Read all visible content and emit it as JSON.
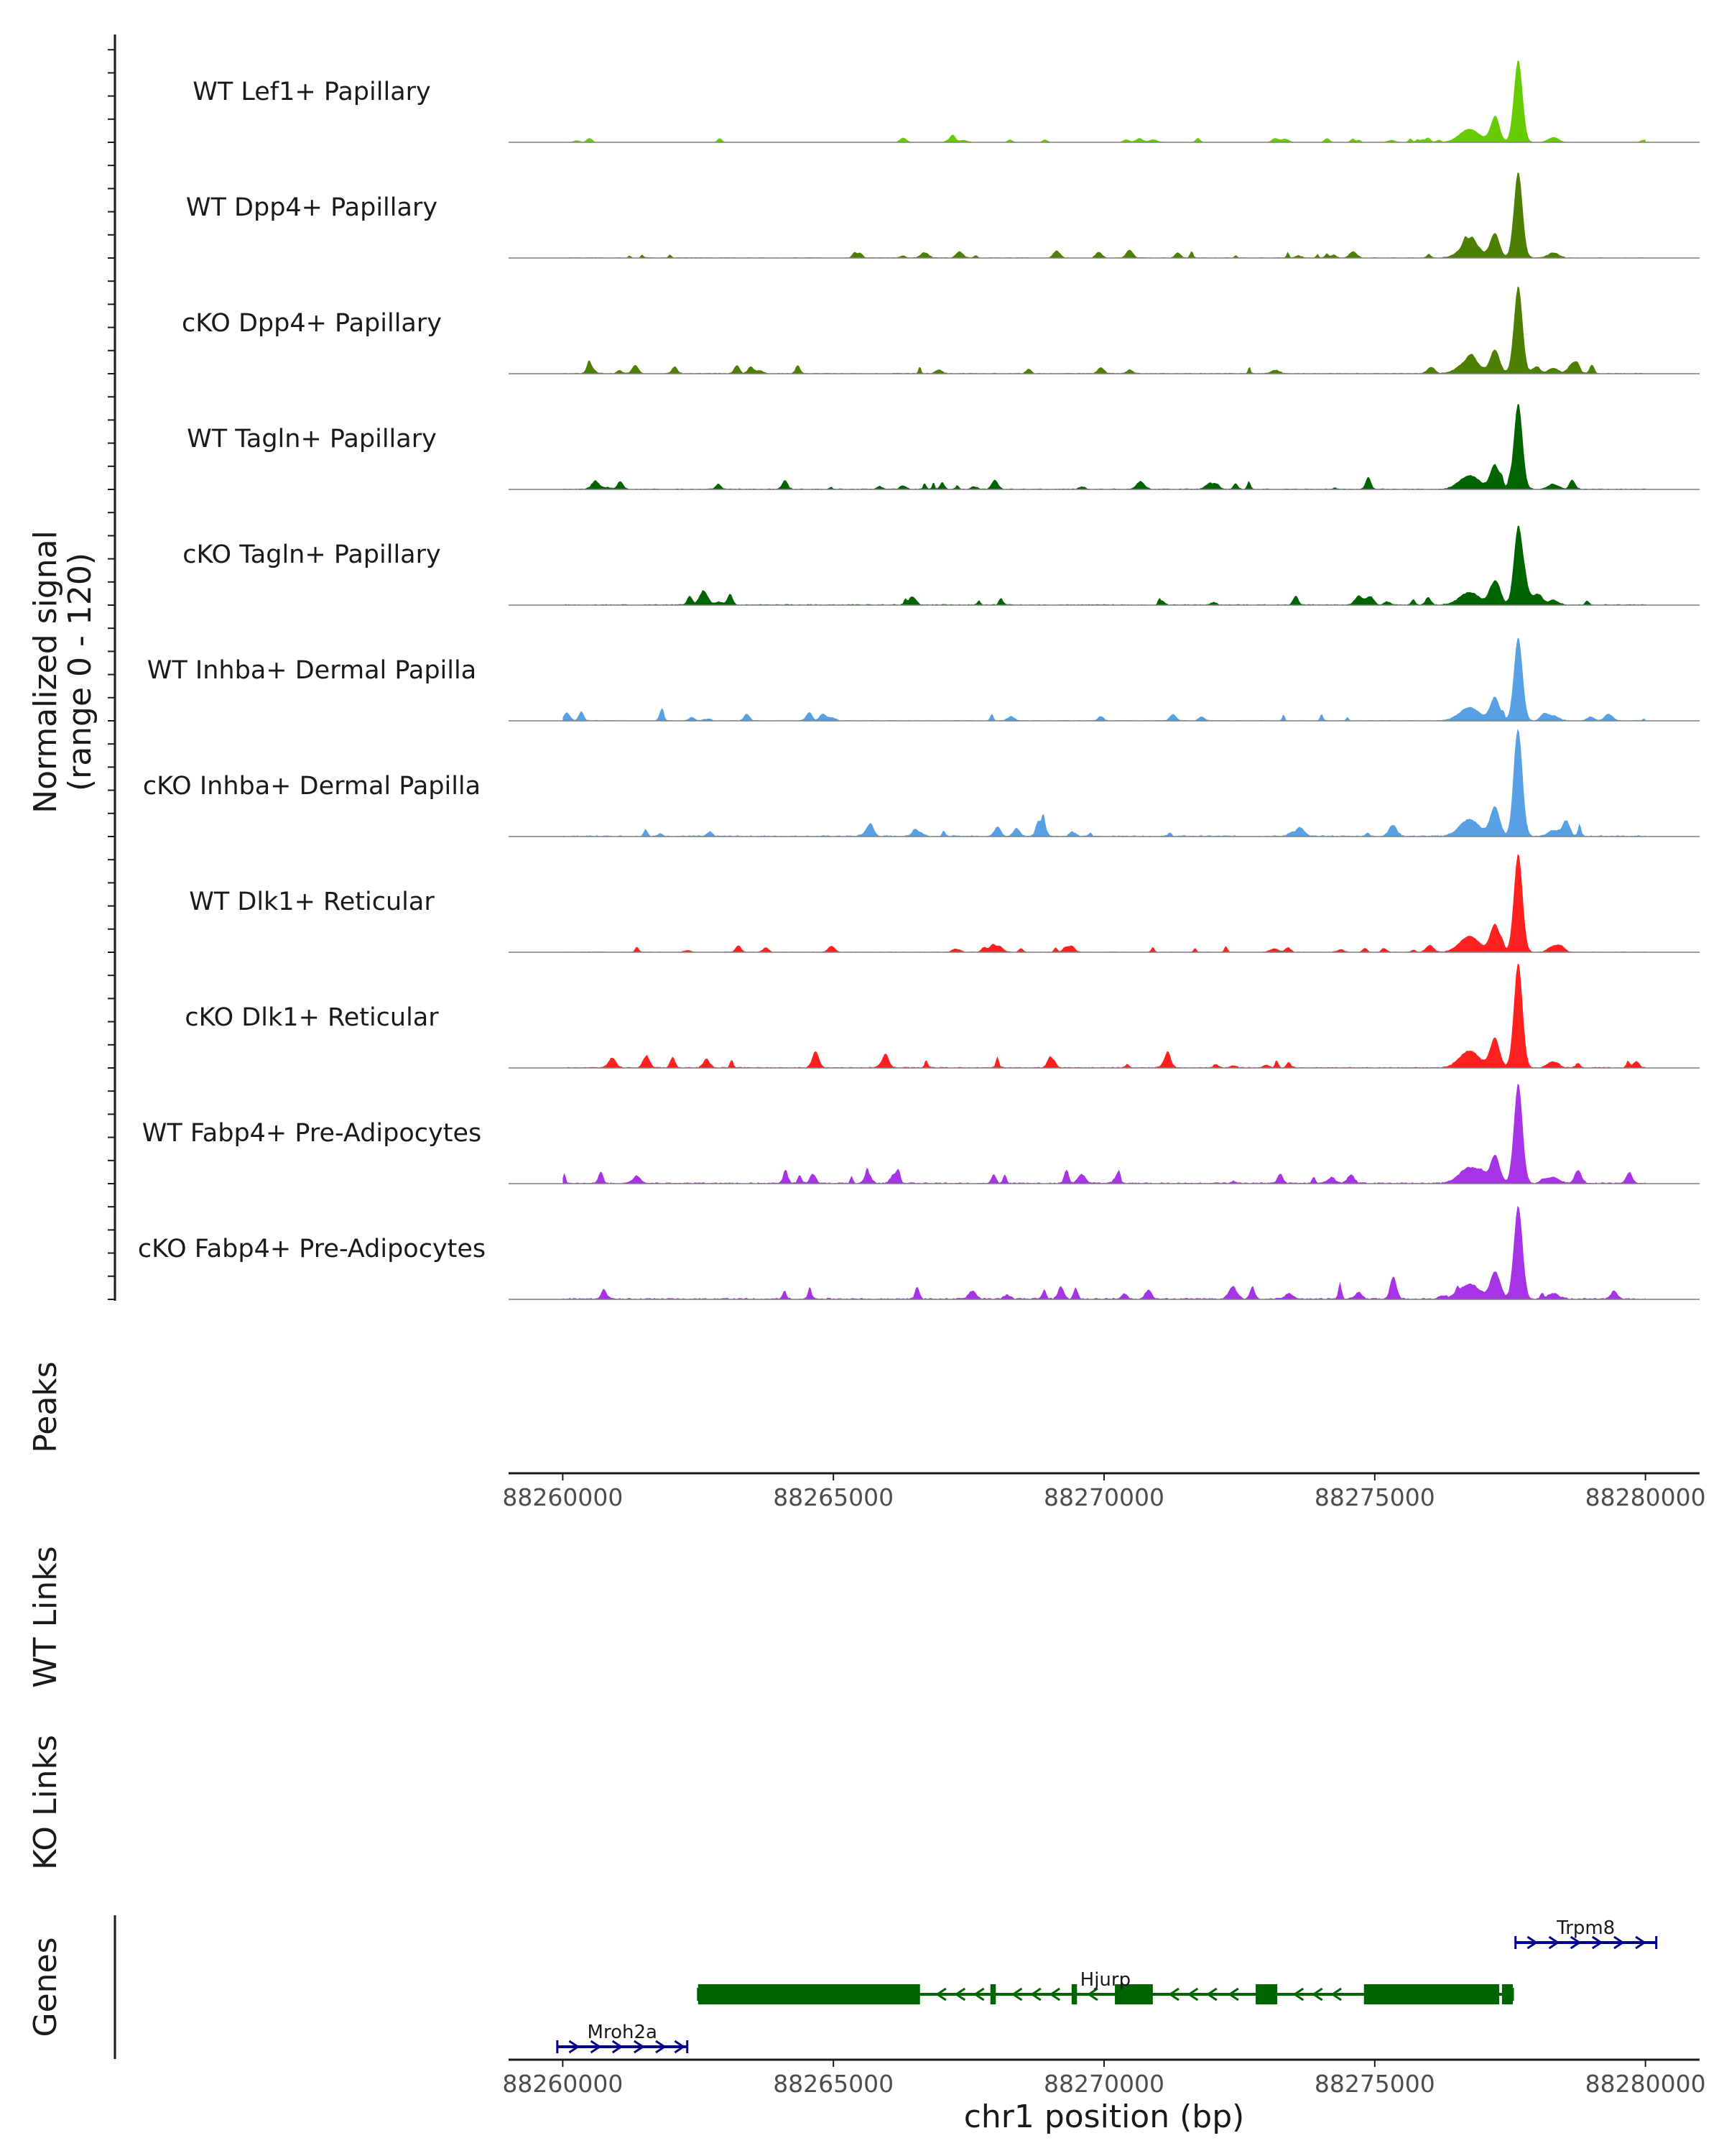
{
  "chart_data": {
    "type": "area",
    "chromosome": "chr1",
    "xlim": [
      88259000,
      88281000
    ],
    "x_ticks": [
      88260000,
      88265000,
      88270000,
      88275000,
      88280000
    ],
    "x_tick_labels": [
      "88260000",
      "88265000",
      "88270000",
      "88275000",
      "88280000"
    ],
    "xlabel": "chr1 position (bp)",
    "y_axis_title_lines": [
      "Normalized signal",
      "(range 0 - 120)"
    ],
    "ylim": [
      0,
      120
    ],
    "main_peak_center": 88277650,
    "tracks": [
      {
        "name": "WT Lef1+ Papillary",
        "color": "#66CC00",
        "peak_height": 92,
        "noise": 0.3,
        "seed": 1
      },
      {
        "name": "WT Dpp4+ Papillary",
        "color": "#4D8000",
        "peak_height": 96,
        "noise": 0.7,
        "seed": 2
      },
      {
        "name": "cKO Dpp4+ Papillary",
        "color": "#4D8000",
        "peak_height": 94,
        "noise": 0.8,
        "seed": 3
      },
      {
        "name": "WT Tagln+ Papillary",
        "color": "#006400",
        "peak_height": 96,
        "noise": 0.9,
        "seed": 4
      },
      {
        "name": "cKO Tagln+ Papillary",
        "color": "#006400",
        "peak_height": 87,
        "noise": 1.0,
        "seed": 5
      },
      {
        "name": "WT Inhba+ Dermal Papilla",
        "color": "#56A0E3",
        "peak_height": 93,
        "noise": 0.7,
        "seed": 6
      },
      {
        "name": "cKO Inhba+ Dermal Papilla",
        "color": "#56A0E3",
        "peak_height": 117,
        "noise": 1.2,
        "seed": 7
      },
      {
        "name": "WT Dlk1+ Reticular",
        "color": "#FF2020",
        "peak_height": 110,
        "noise": 0.6,
        "seed": 8
      },
      {
        "name": "cKO Dlk1+ Reticular",
        "color": "#FF2020",
        "peak_height": 117,
        "noise": 1.0,
        "seed": 9
      },
      {
        "name": "WT Fabp4+ Pre-Adipocytes",
        "color": "#A733E6",
        "peak_height": 111,
        "noise": 1.3,
        "seed": 10
      },
      {
        "name": "cKO Fabp4+ Pre-Adipocytes",
        "color": "#A733E6",
        "peak_height": 104,
        "noise": 1.4,
        "seed": 11
      }
    ],
    "panels": {
      "peaks_title": "Peaks",
      "wt_links_title": "WT Links",
      "ko_links_title": "KO Links",
      "genes_title": "Genes"
    },
    "genes": [
      {
        "name": "Trpm8",
        "strand": "+",
        "color": "#00008B",
        "start": 88277600,
        "end": 88280200,
        "row": 0,
        "exons": [],
        "arrows": [
          88277900,
          88278300,
          88278700,
          88279100,
          88279500,
          88279900
        ]
      },
      {
        "name": "Hjurp",
        "strand": "-",
        "color": "#006400",
        "start": 88262500,
        "end": 88277550,
        "row": 1,
        "exons": [
          [
            88262500,
            88266600
          ],
          [
            88267900,
            88268000
          ],
          [
            88269400,
            88269500
          ],
          [
            88270200,
            88270900
          ],
          [
            88272800,
            88273200
          ],
          [
            88274800,
            88277300
          ],
          [
            88277350,
            88277550
          ]
        ],
        "arrows": [
          88267000,
          88267350,
          88267700,
          88268400,
          88268750,
          88269100,
          88269800,
          88271300,
          88271650,
          88272000,
          88272400,
          88273600,
          88273950,
          88274300
        ]
      },
      {
        "name": "Mroh2a",
        "strand": "+",
        "color": "#00008B",
        "start": 88259900,
        "end": 88262300,
        "row": 2,
        "exons": [],
        "arrows": [
          88260200,
          88260600,
          88261000,
          88261400,
          88261800,
          88262150
        ]
      }
    ]
  }
}
